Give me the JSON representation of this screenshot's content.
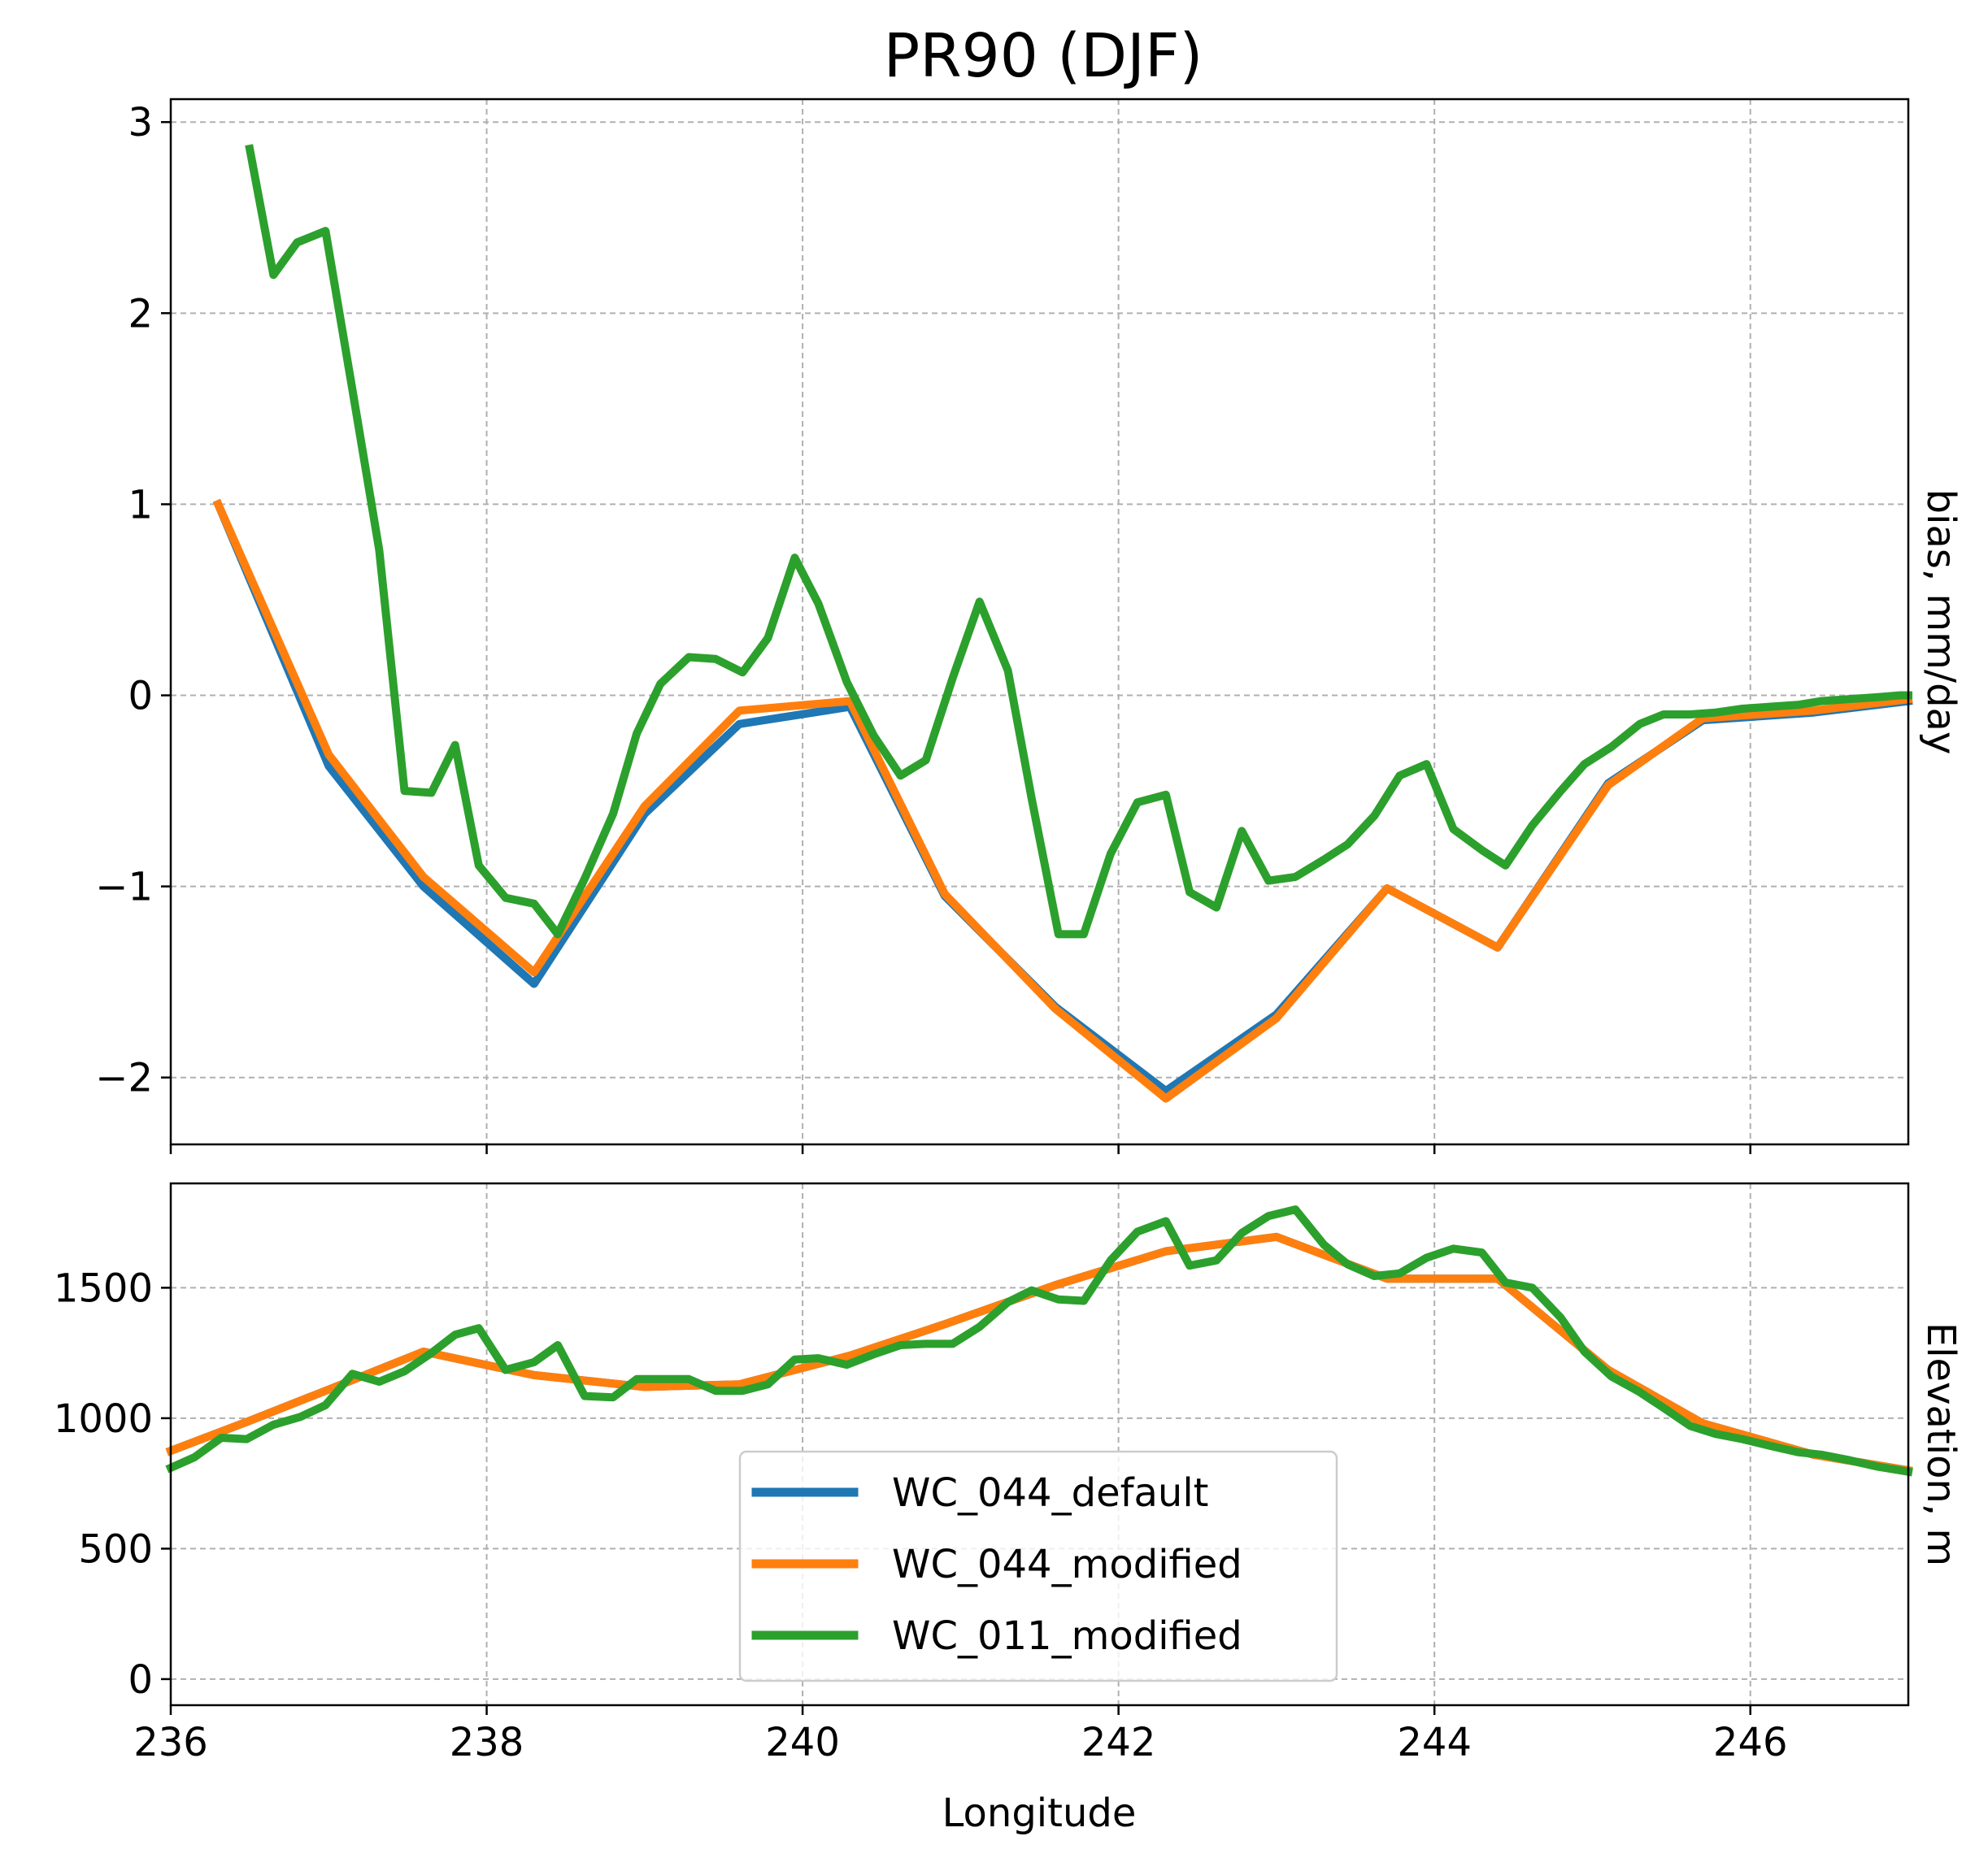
{
  "chart_data": [
    {
      "type": "line",
      "title": "PR90 (DJF)",
      "xlabel": "",
      "ylabel": "bias, mm/day",
      "xlim": [
        236,
        247
      ],
      "ylim": [
        -2.35,
        3.12
      ],
      "xticks": [
        236,
        238,
        240,
        242,
        244,
        246
      ],
      "yticks": [
        -2,
        -1,
        0,
        1,
        2,
        3
      ],
      "ytick_labels": [
        "−2",
        "−1",
        "0",
        "1",
        "2",
        "3"
      ],
      "grid": true,
      "series": [
        {
          "name": "WC_044_default",
          "color": "#1f77b4",
          "x": [
            236.3,
            237.0,
            237.6,
            238.3,
            239.0,
            239.6,
            240.3,
            240.9,
            241.6,
            242.3,
            243.0,
            243.7,
            244.4,
            245.1,
            245.7,
            246.4,
            247.0
          ],
          "y": [
            1.0,
            -0.37,
            -1.0,
            -1.51,
            -0.62,
            -0.15,
            -0.06,
            -1.05,
            -1.63,
            -2.07,
            -1.67,
            -1.01,
            -1.32,
            -0.46,
            -0.13,
            -0.09,
            -0.03
          ]
        },
        {
          "name": "WC_044_modified",
          "color": "#ff7f0e",
          "x": [
            236.3,
            237.0,
            237.6,
            238.3,
            239.0,
            239.6,
            240.3,
            240.9,
            241.6,
            242.3,
            243.0,
            243.7,
            244.4,
            245.1,
            245.7,
            246.4,
            247.0
          ],
          "y": [
            1.0,
            -0.31,
            -0.95,
            -1.45,
            -0.58,
            -0.08,
            -0.03,
            -1.04,
            -1.64,
            -2.11,
            -1.69,
            -1.01,
            -1.32,
            -0.47,
            -0.12,
            -0.08,
            -0.02
          ]
        },
        {
          "name": "WC_011_modified",
          "color": "#2ca02c",
          "x": [
            236.5,
            236.65,
            236.8,
            236.98,
            237.15,
            237.32,
            237.48,
            237.65,
            237.8,
            237.95,
            238.12,
            238.3,
            238.45,
            238.62,
            238.8,
            238.95,
            239.1,
            239.28,
            239.45,
            239.62,
            239.78,
            239.95,
            240.1,
            240.28,
            240.45,
            240.62,
            240.78,
            240.95,
            241.12,
            241.3,
            241.45,
            241.62,
            241.78,
            241.95,
            242.12,
            242.3,
            242.45,
            242.62,
            242.78,
            242.95,
            243.12,
            243.3,
            243.45,
            243.62,
            243.78,
            243.95,
            244.12,
            244.3,
            244.45,
            244.62,
            244.8,
            244.95,
            245.12,
            245.3,
            245.45,
            245.62,
            245.78,
            245.95,
            246.12,
            246.3,
            246.45,
            246.62,
            246.8,
            246.95,
            247.0
          ],
          "y": [
            2.86,
            2.2,
            2.37,
            2.43,
            1.6,
            0.76,
            -0.5,
            -0.51,
            -0.26,
            -0.89,
            -1.06,
            -1.09,
            -1.25,
            -0.96,
            -0.62,
            -0.2,
            0.06,
            0.2,
            0.19,
            0.12,
            0.3,
            0.72,
            0.48,
            0.07,
            -0.21,
            -0.42,
            -0.34,
            0.09,
            0.49,
            0.13,
            -0.54,
            -1.25,
            -1.25,
            -0.83,
            -0.56,
            -0.52,
            -1.03,
            -1.11,
            -0.71,
            -0.97,
            -0.95,
            -0.86,
            -0.78,
            -0.63,
            -0.42,
            -0.36,
            -0.7,
            -0.81,
            -0.89,
            -0.68,
            -0.5,
            -0.36,
            -0.27,
            -0.15,
            -0.1,
            -0.1,
            -0.09,
            -0.07,
            -0.06,
            -0.05,
            -0.03,
            -0.02,
            -0.01,
            0.0,
            0.0
          ]
        }
      ]
    },
    {
      "type": "line",
      "title": "",
      "xlabel": "Longitude",
      "ylabel": "Elevation, m",
      "xlim": [
        236,
        247
      ],
      "ylim": [
        -100,
        1900
      ],
      "xticks": [
        236,
        238,
        240,
        242,
        244,
        246
      ],
      "yticks": [
        0,
        500,
        1000,
        1500
      ],
      "ytick_labels": [
        "0",
        "500",
        "1000",
        "1500"
      ],
      "grid": true,
      "legend": "lower center",
      "series": [
        {
          "name": "WC_044_default",
          "color": "#1f77b4",
          "x": [
            236.0,
            236.5,
            237.0,
            237.6,
            238.3,
            239.0,
            239.6,
            240.3,
            240.9,
            241.6,
            242.3,
            243.0,
            243.7,
            244.4,
            245.1,
            245.7,
            246.4,
            247.0
          ],
          "y": [
            875,
            990,
            1110,
            1255,
            1165,
            1120,
            1130,
            1240,
            1360,
            1510,
            1640,
            1695,
            1535,
            1535,
            1185,
            980,
            860,
            800
          ]
        },
        {
          "name": "WC_044_modified",
          "color": "#ff7f0e",
          "x": [
            236.0,
            236.5,
            237.0,
            237.6,
            238.3,
            239.0,
            239.6,
            240.3,
            240.9,
            241.6,
            242.3,
            243.0,
            243.7,
            244.4,
            245.1,
            245.7,
            246.4,
            247.0
          ],
          "y": [
            875,
            990,
            1110,
            1255,
            1165,
            1120,
            1130,
            1240,
            1360,
            1510,
            1640,
            1695,
            1535,
            1535,
            1185,
            980,
            860,
            800
          ]
        },
        {
          "name": "WC_011_modified",
          "color": "#2ca02c",
          "x": [
            236.0,
            236.15,
            236.32,
            236.48,
            236.65,
            236.82,
            236.98,
            237.15,
            237.32,
            237.48,
            237.65,
            237.8,
            237.95,
            238.12,
            238.3,
            238.45,
            238.62,
            238.8,
            238.95,
            239.1,
            239.28,
            239.45,
            239.62,
            239.78,
            239.95,
            240.1,
            240.28,
            240.45,
            240.62,
            240.78,
            240.95,
            241.12,
            241.3,
            241.45,
            241.62,
            241.78,
            241.95,
            242.12,
            242.3,
            242.45,
            242.62,
            242.78,
            242.95,
            243.12,
            243.3,
            243.45,
            243.62,
            243.78,
            243.95,
            244.12,
            244.3,
            244.45,
            244.62,
            244.8,
            244.95,
            245.12,
            245.3,
            245.45,
            245.62,
            245.78,
            245.95,
            246.12,
            246.3,
            246.45,
            246.62,
            246.8,
            246.95,
            247.0
          ],
          "y": [
            810,
            850,
            925,
            920,
            975,
            1005,
            1050,
            1170,
            1140,
            1180,
            1250,
            1320,
            1345,
            1185,
            1215,
            1280,
            1085,
            1080,
            1150,
            1150,
            1150,
            1105,
            1105,
            1130,
            1225,
            1230,
            1205,
            1245,
            1280,
            1285,
            1285,
            1350,
            1445,
            1490,
            1455,
            1450,
            1605,
            1715,
            1755,
            1585,
            1605,
            1710,
            1775,
            1800,
            1665,
            1590,
            1545,
            1555,
            1615,
            1650,
            1635,
            1520,
            1500,
            1385,
            1255,
            1160,
            1100,
            1040,
            970,
            940,
            920,
            895,
            870,
            860,
            840,
            815,
            800,
            795
          ]
        }
      ]
    }
  ]
}
